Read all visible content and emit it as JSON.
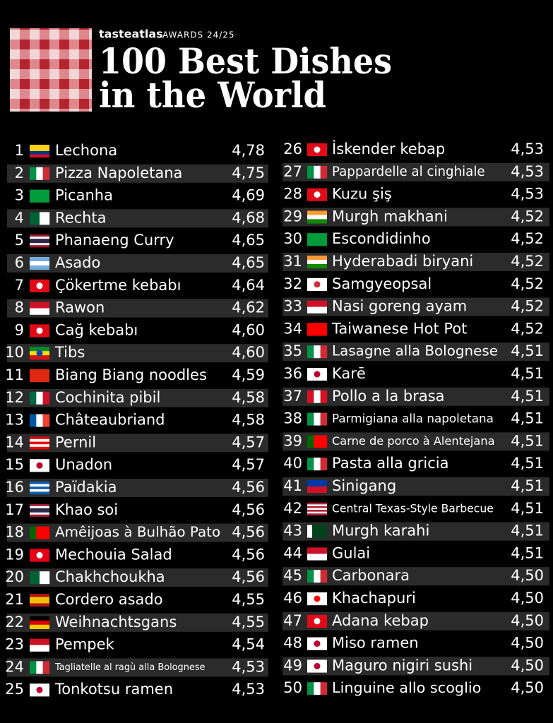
{
  "header": {
    "brand": "tasteatlas",
    "award": "AWARDS 24/25",
    "title_line1": "100 Best Dishes",
    "title_line2": "in the World"
  },
  "left": [
    {
      "rank": 1,
      "name": "Lechona",
      "rating": "4,78"
    },
    {
      "rank": 2,
      "name": "Pizza Napoletana",
      "rating": "4,75"
    },
    {
      "rank": 3,
      "name": "Picanha",
      "rating": "4,69"
    },
    {
      "rank": 4,
      "name": "Rechta",
      "rating": "4,68"
    },
    {
      "rank": 5,
      "name": "Phanaeng Curry",
      "rating": "4,65"
    },
    {
      "rank": 6,
      "name": "Asado",
      "rating": "4,65"
    },
    {
      "rank": 7,
      "name": "Çökertme kebabı",
      "rating": "4,64"
    },
    {
      "rank": 8,
      "name": "Rawon",
      "rating": "4,62"
    },
    {
      "rank": 9,
      "name": "Cağ kebabı",
      "rating": "4,60"
    },
    {
      "rank": 10,
      "name": "Tibs",
      "rating": "4,60"
    },
    {
      "rank": 11,
      "name": "Biang Biang noodles",
      "rating": "4,59"
    },
    {
      "rank": 12,
      "name": "Cochinita pibil",
      "rating": "4,58"
    },
    {
      "rank": 13,
      "name": "Châteaubriand",
      "rating": "4,58"
    },
    {
      "rank": 14,
      "name": "Pernil",
      "rating": "4,57"
    },
    {
      "rank": 15,
      "name": "Unadon",
      "rating": "4,57"
    },
    {
      "rank": 16,
      "name": "Païdakia",
      "rating": "4,56"
    },
    {
      "rank": 17,
      "name": "Khao soi",
      "rating": "4,56"
    },
    {
      "rank": 18,
      "name": "Amêijoas à Bulhão Pato",
      "rating": "4,56"
    },
    {
      "rank": 19,
      "name": "Mechouia Salad",
      "rating": "4,56"
    },
    {
      "rank": 20,
      "name": "Chakhchoukha",
      "rating": "4,56"
    },
    {
      "rank": 21,
      "name": "Cordero asado",
      "rating": "4,55"
    },
    {
      "rank": 22,
      "name": "Weihnachtsgans",
      "rating": "4,55"
    },
    {
      "rank": 23,
      "name": "Pempek",
      "rating": "4,54"
    },
    {
      "rank": 24,
      "name": "Tagliatelle al ragù alla Bolognese",
      "rating": "4,53"
    },
    {
      "rank": 25,
      "name": "Tonkotsu ramen",
      "rating": "4,53"
    }
  ],
  "right": [
    {
      "rank": 26,
      "name": "İskender kebap",
      "rating": "4,53"
    },
    {
      "rank": 27,
      "name": "Pappardelle al cinghiale",
      "rating": "4,53"
    },
    {
      "rank": 28,
      "name": "Kuzu şiş",
      "rating": "4,53"
    },
    {
      "rank": 29,
      "name": "Murgh makhani",
      "rating": "4,52"
    },
    {
      "rank": 30,
      "name": "Escondidinho",
      "rating": "4,52"
    },
    {
      "rank": 31,
      "name": "Hyderabadi biryani",
      "rating": "4,52"
    },
    {
      "rank": 32,
      "name": "Samgyeopsal",
      "rating": "4,52"
    },
    {
      "rank": 33,
      "name": "Nasi goreng ayam",
      "rating": "4,52"
    },
    {
      "rank": 34,
      "name": "Taiwanese Hot Pot",
      "rating": "4,52"
    },
    {
      "rank": 35,
      "name": "Lasagne alla Bolognese",
      "rating": "4,51"
    },
    {
      "rank": 36,
      "name": "Karē",
      "rating": "4,51"
    },
    {
      "rank": 37,
      "name": "Pollo a la brasa",
      "rating": "4,51"
    },
    {
      "rank": 38,
      "name": "Parmigiana alla napoletana",
      "rating": "4,51"
    },
    {
      "rank": 39,
      "name": "Carne de porco à Alentejana",
      "rating": "4,51"
    },
    {
      "rank": 40,
      "name": "Pasta alla gricia",
      "rating": "4,51"
    },
    {
      "rank": 41,
      "name": "Sinigang",
      "rating": "4,51"
    },
    {
      "rank": 42,
      "name": "Central Texas-Style Barbecue",
      "rating": "4,51"
    },
    {
      "rank": 43,
      "name": "Murgh karahi",
      "rating": "4,51"
    },
    {
      "rank": 44,
      "name": "Gulai",
      "rating": "4,51"
    },
    {
      "rank": 45,
      "name": "Carbonara",
      "rating": "4,50"
    },
    {
      "rank": 46,
      "name": "Khachapuri",
      "rating": "4,50"
    },
    {
      "rank": 47,
      "name": "Adana kebap",
      "rating": "4,50"
    },
    {
      "rank": 48,
      "name": "Miso ramen",
      "rating": "4,50"
    },
    {
      "rank": 49,
      "name": "Maguro nigiri sushi",
      "rating": "4,50"
    },
    {
      "rank": 50,
      "name": "Linguine allo scoglio",
      "rating": "4,50"
    }
  ]
}
